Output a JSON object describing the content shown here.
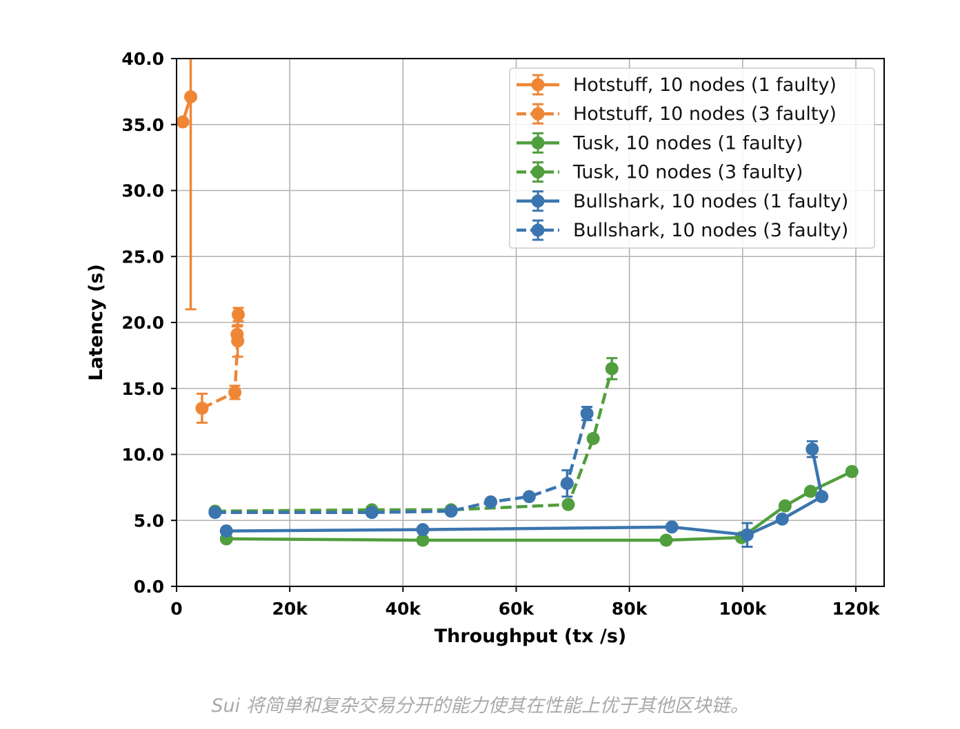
{
  "caption": "Sui 将简单和复杂交易分开的能力使其在性能上优于其他区块链。",
  "chart_data": {
    "type": "line",
    "title": "",
    "xlabel": "Throughput (tx /s)",
    "ylabel": "Latency (s)",
    "xlim": [
      0,
      125000
    ],
    "ylim": [
      0,
      40
    ],
    "xticks": [
      {
        "value": 0,
        "label": "0"
      },
      {
        "value": 20000,
        "label": "20k"
      },
      {
        "value": 40000,
        "label": "40k"
      },
      {
        "value": 60000,
        "label": "60k"
      },
      {
        "value": 80000,
        "label": "80k"
      },
      {
        "value": 100000,
        "label": "100k"
      },
      {
        "value": 120000,
        "label": "120k"
      }
    ],
    "yticks": [
      {
        "value": 0,
        "label": "0.0"
      },
      {
        "value": 5,
        "label": "5.0"
      },
      {
        "value": 10,
        "label": "10.0"
      },
      {
        "value": 15,
        "label": "15.0"
      },
      {
        "value": 20,
        "label": "20.0"
      },
      {
        "value": 25,
        "label": "25.0"
      },
      {
        "value": 30,
        "label": "30.0"
      },
      {
        "value": 35,
        "label": "35.0"
      },
      {
        "value": 40,
        "label": "40.0"
      }
    ],
    "grid": true,
    "legend_position": "top-right",
    "series": [
      {
        "name": "Hotstuff, 10 nodes (1 faulty)",
        "color": "#ef8636",
        "dash": false,
        "points": [
          {
            "x": 1100,
            "y": 35.2
          },
          {
            "x": 2500,
            "y": 37.1,
            "err": 16.1
          }
        ]
      },
      {
        "name": "Hotstuff, 10 nodes (3 faulty)",
        "color": "#ef8636",
        "dash": true,
        "points": [
          {
            "x": 4500,
            "y": 13.5,
            "err": 1.1
          },
          {
            "x": 10300,
            "y": 14.7,
            "err": 0.5
          },
          {
            "x": 10800,
            "y": 18.6,
            "err": 1.2
          },
          {
            "x": 10700,
            "y": 19.1,
            "err": 0.6
          },
          {
            "x": 10900,
            "y": 20.6,
            "err": 0.5
          }
        ]
      },
      {
        "name": "Tusk, 10 nodes (1 faulty)",
        "color": "#519e3e",
        "dash": false,
        "points": [
          {
            "x": 8800,
            "y": 3.6
          },
          {
            "x": 43500,
            "y": 3.5
          },
          {
            "x": 86500,
            "y": 3.5
          },
          {
            "x": 99800,
            "y": 3.7
          },
          {
            "x": 107500,
            "y": 6.1
          },
          {
            "x": 112000,
            "y": 7.2
          },
          {
            "x": 119300,
            "y": 8.7
          }
        ]
      },
      {
        "name": "Tusk, 10 nodes (3 faulty)",
        "color": "#519e3e",
        "dash": true,
        "points": [
          {
            "x": 6800,
            "y": 5.7
          },
          {
            "x": 34500,
            "y": 5.8
          },
          {
            "x": 48500,
            "y": 5.8
          },
          {
            "x": 69200,
            "y": 6.2
          },
          {
            "x": 73600,
            "y": 11.2
          },
          {
            "x": 76900,
            "y": 16.5,
            "err": 0.8
          }
        ]
      },
      {
        "name": "Bullshark, 10 nodes (1 faulty)",
        "color": "#3b75af",
        "dash": false,
        "points": [
          {
            "x": 8800,
            "y": 4.2
          },
          {
            "x": 43500,
            "y": 4.3
          },
          {
            "x": 87500,
            "y": 4.5
          },
          {
            "x": 100800,
            "y": 3.9,
            "err": 0.9
          },
          {
            "x": 107000,
            "y": 5.1
          },
          {
            "x": 114000,
            "y": 6.8
          },
          {
            "x": 112300,
            "y": 10.4,
            "err": 0.6
          }
        ]
      },
      {
        "name": "Bullshark, 10 nodes (3 faulty)",
        "color": "#3b75af",
        "dash": true,
        "points": [
          {
            "x": 6800,
            "y": 5.6
          },
          {
            "x": 34500,
            "y": 5.6
          },
          {
            "x": 48500,
            "y": 5.7
          },
          {
            "x": 55500,
            "y": 6.4
          },
          {
            "x": 62300,
            "y": 6.8
          },
          {
            "x": 69000,
            "y": 7.8,
            "err": 1.0
          },
          {
            "x": 72500,
            "y": 13.1,
            "err": 0.5
          }
        ]
      }
    ]
  }
}
